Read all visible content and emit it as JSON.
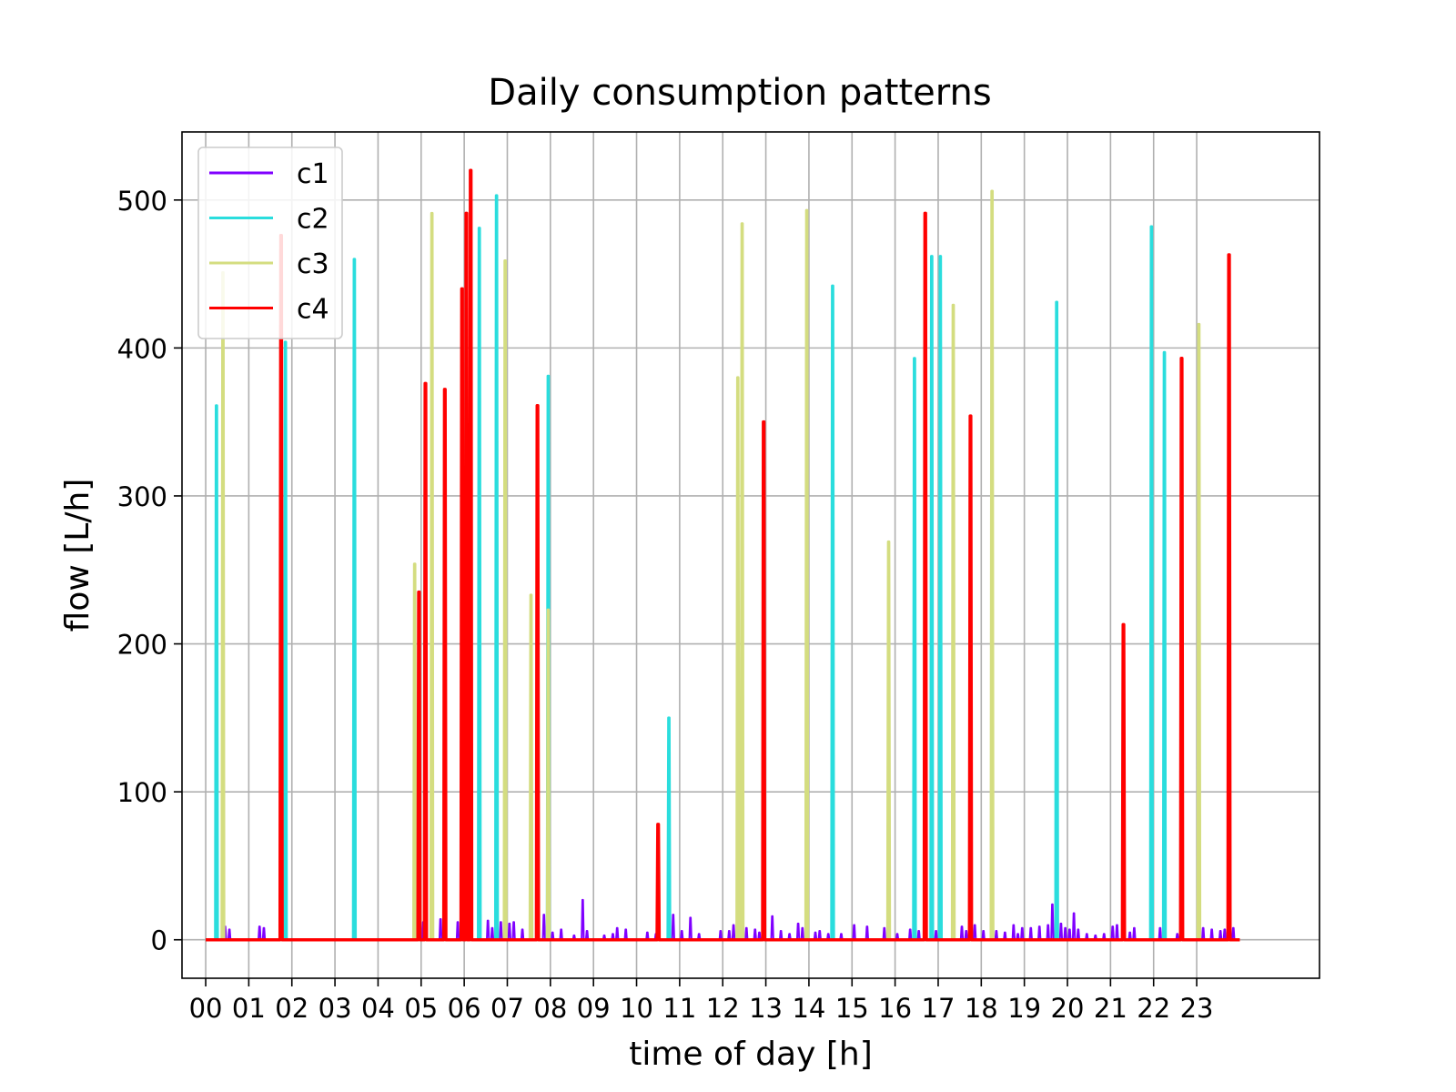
{
  "chart_data": {
    "type": "line",
    "title": "Daily consumption patterns",
    "xlabel": "time of day [h]",
    "ylabel": "flow [L/h]",
    "xlim": [
      -0.55,
      25.85
    ],
    "ylim": [
      -26,
      546
    ],
    "grid": true,
    "legend_position": "upper-left",
    "x_ticks": [
      0,
      1,
      2,
      3,
      4,
      5,
      6,
      7,
      8,
      9,
      10,
      11,
      12,
      13,
      14,
      15,
      16,
      17,
      18,
      19,
      20,
      21,
      22,
      23
    ],
    "x_tick_labels": [
      "00",
      "01",
      "02",
      "03",
      "04",
      "05",
      "06",
      "07",
      "08",
      "09",
      "10",
      "11",
      "12",
      "13",
      "14",
      "15",
      "16",
      "17",
      "18",
      "19",
      "20",
      "21",
      "22",
      "23"
    ],
    "y_ticks": [
      0,
      100,
      200,
      300,
      400,
      500
    ],
    "y_tick_labels": [
      "0",
      "100",
      "200",
      "300",
      "400",
      "500"
    ],
    "series": [
      {
        "name": "c1",
        "color": "#8000ff",
        "stroke_width": 2,
        "x_range": [
          0,
          24
        ],
        "spikes": [
          [
            0.45,
            9
          ],
          [
            0.55,
            7
          ],
          [
            1.25,
            9
          ],
          [
            1.35,
            8
          ],
          [
            4.95,
            22
          ],
          [
            5.05,
            12
          ],
          [
            5.45,
            14
          ],
          [
            5.85,
            12
          ],
          [
            6.05,
            10
          ],
          [
            6.35,
            12
          ],
          [
            6.55,
            13
          ],
          [
            6.65,
            8
          ],
          [
            6.85,
            12
          ],
          [
            6.95,
            13
          ],
          [
            7.05,
            11
          ],
          [
            7.15,
            12
          ],
          [
            7.35,
            7
          ],
          [
            7.85,
            17
          ],
          [
            8.05,
            5
          ],
          [
            8.25,
            7
          ],
          [
            8.55,
            3
          ],
          [
            8.75,
            27
          ],
          [
            8.85,
            6
          ],
          [
            9.25,
            3
          ],
          [
            9.45,
            4
          ],
          [
            9.55,
            8
          ],
          [
            9.75,
            7
          ],
          [
            10.25,
            5
          ],
          [
            10.45,
            4
          ],
          [
            10.75,
            4
          ],
          [
            10.85,
            17
          ],
          [
            11.05,
            6
          ],
          [
            11.25,
            15
          ],
          [
            11.45,
            4
          ],
          [
            11.95,
            6
          ],
          [
            12.15,
            6
          ],
          [
            12.25,
            10
          ],
          [
            12.55,
            8
          ],
          [
            12.75,
            7
          ],
          [
            12.85,
            5
          ],
          [
            13.15,
            16
          ],
          [
            13.35,
            6
          ],
          [
            13.55,
            4
          ],
          [
            13.75,
            11
          ],
          [
            13.85,
            8
          ],
          [
            14.15,
            5
          ],
          [
            14.25,
            6
          ],
          [
            14.45,
            4
          ],
          [
            14.75,
            4
          ],
          [
            15.05,
            10
          ],
          [
            15.35,
            9
          ],
          [
            15.75,
            8
          ],
          [
            16.05,
            4
          ],
          [
            16.35,
            7
          ],
          [
            16.55,
            6
          ],
          [
            16.95,
            6
          ],
          [
            17.35,
            7
          ],
          [
            17.55,
            9
          ],
          [
            17.65,
            6
          ],
          [
            17.85,
            10
          ],
          [
            18.05,
            6
          ],
          [
            18.35,
            6
          ],
          [
            18.55,
            5
          ],
          [
            18.75,
            10
          ],
          [
            18.85,
            4
          ],
          [
            18.95,
            8
          ],
          [
            19.15,
            8
          ],
          [
            19.35,
            9
          ],
          [
            19.55,
            10
          ],
          [
            19.65,
            24
          ],
          [
            19.75,
            14
          ],
          [
            19.85,
            11
          ],
          [
            19.95,
            8
          ],
          [
            20.05,
            7
          ],
          [
            20.15,
            18
          ],
          [
            20.25,
            7
          ],
          [
            20.45,
            4
          ],
          [
            20.65,
            3
          ],
          [
            20.85,
            4
          ],
          [
            21.05,
            9
          ],
          [
            21.15,
            10
          ],
          [
            21.45,
            5
          ],
          [
            21.55,
            8
          ],
          [
            21.95,
            9
          ],
          [
            22.15,
            8
          ],
          [
            22.55,
            4
          ],
          [
            23.15,
            8
          ],
          [
            23.35,
            7
          ],
          [
            23.55,
            6
          ],
          [
            23.65,
            7
          ],
          [
            23.85,
            8
          ]
        ]
      },
      {
        "name": "c2",
        "color": "#2adddd",
        "stroke_width": 3,
        "x_range": [
          0,
          24
        ],
        "spikes": [
          [
            0.25,
            361
          ],
          [
            1.85,
            404
          ],
          [
            3.45,
            460
          ],
          [
            6.35,
            481
          ],
          [
            6.75,
            503
          ],
          [
            7.95,
            381
          ],
          [
            10.75,
            150
          ],
          [
            14.55,
            442
          ],
          [
            16.45,
            393
          ],
          [
            16.85,
            462
          ],
          [
            17.05,
            462
          ],
          [
            19.75,
            431
          ],
          [
            21.95,
            482
          ],
          [
            22.25,
            397
          ]
        ]
      },
      {
        "name": "c3",
        "color": "#d4dd80",
        "stroke_width": 3,
        "x_range": [
          0,
          24
        ],
        "spikes": [
          [
            0.4,
            451
          ],
          [
            4.85,
            254
          ],
          [
            5.25,
            491
          ],
          [
            6.95,
            459
          ],
          [
            7.55,
            233
          ],
          [
            7.95,
            223
          ],
          [
            12.35,
            380
          ],
          [
            12.45,
            484
          ],
          [
            13.95,
            493
          ],
          [
            15.85,
            269
          ],
          [
            17.35,
            429
          ],
          [
            18.25,
            506
          ],
          [
            23.05,
            416
          ]
        ]
      },
      {
        "name": "c4",
        "color": "#ff0000",
        "stroke_width": 3.5,
        "x_range": [
          0,
          24
        ],
        "spikes": [
          [
            1.75,
            476
          ],
          [
            4.95,
            235
          ],
          [
            5.1,
            376
          ],
          [
            5.55,
            372
          ],
          [
            5.95,
            440
          ],
          [
            6.05,
            491
          ],
          [
            6.15,
            520
          ],
          [
            7.7,
            361
          ],
          [
            10.5,
            78
          ],
          [
            12.95,
            350
          ],
          [
            16.7,
            491
          ],
          [
            17.75,
            354
          ],
          [
            21.3,
            213
          ],
          [
            22.65,
            393
          ],
          [
            23.75,
            463
          ]
        ]
      }
    ]
  }
}
